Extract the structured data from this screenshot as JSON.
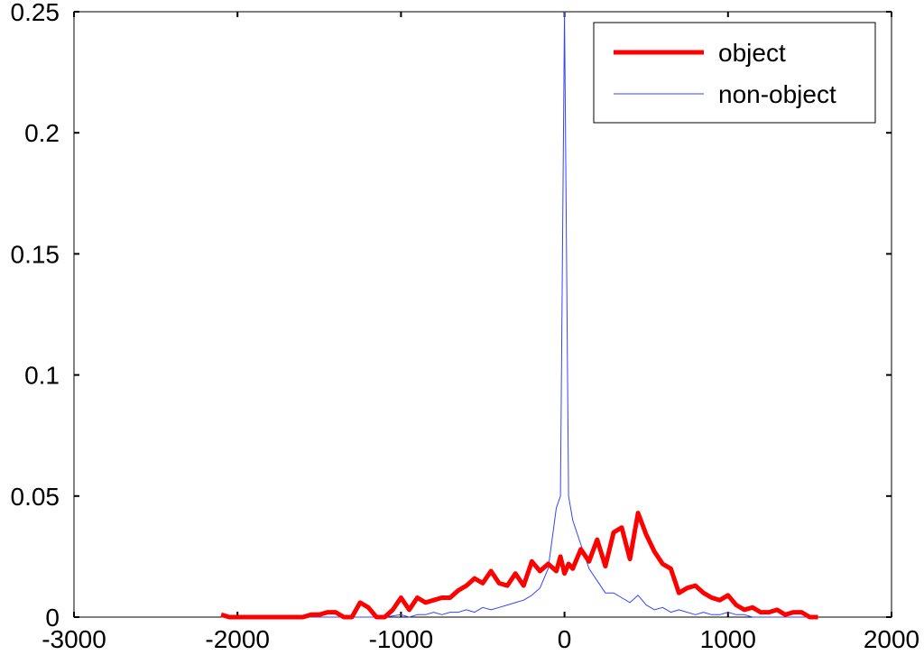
{
  "chart_data": {
    "type": "line",
    "title": "",
    "xlabel": "",
    "ylabel": "",
    "xlim": [
      -3000,
      2000
    ],
    "ylim": [
      0,
      0.25
    ],
    "xticks": [
      "-3000",
      "-2000",
      "-1000",
      "0",
      "1000",
      "2000"
    ],
    "yticks": [
      "0",
      "0.05",
      "0.1",
      "0.15",
      "0.2",
      "0.25"
    ],
    "grid": false,
    "legend_position": "top-right",
    "series": [
      {
        "name": "object",
        "color": "#ff0000",
        "x": [
          -2100,
          -2050,
          -2000,
          -1950,
          -1900,
          -1850,
          -1800,
          -1750,
          -1700,
          -1650,
          -1600,
          -1550,
          -1500,
          -1450,
          -1400,
          -1350,
          -1300,
          -1250,
          -1200,
          -1150,
          -1100,
          -1050,
          -1000,
          -950,
          -900,
          -850,
          -800,
          -750,
          -700,
          -650,
          -600,
          -550,
          -500,
          -450,
          -400,
          -350,
          -300,
          -250,
          -200,
          -150,
          -100,
          -50,
          -25,
          0,
          25,
          50,
          100,
          150,
          200,
          250,
          300,
          350,
          400,
          450,
          500,
          550,
          600,
          650,
          700,
          750,
          800,
          850,
          900,
          950,
          1000,
          1050,
          1100,
          1150,
          1200,
          1250,
          1300,
          1350,
          1400,
          1450,
          1500,
          1550
        ],
        "y": [
          0.001,
          0,
          0,
          0,
          0,
          0,
          0,
          0,
          0,
          0,
          0,
          0.001,
          0.001,
          0.002,
          0.002,
          0,
          0,
          0.006,
          0.004,
          0,
          0,
          0.003,
          0.008,
          0.003,
          0.008,
          0.006,
          0.007,
          0.008,
          0.008,
          0.011,
          0.013,
          0.016,
          0.014,
          0.019,
          0.014,
          0.013,
          0.018,
          0.013,
          0.023,
          0.019,
          0.022,
          0.019,
          0.025,
          0.018,
          0.022,
          0.02,
          0.028,
          0.023,
          0.032,
          0.021,
          0.035,
          0.037,
          0.024,
          0.043,
          0.034,
          0.027,
          0.022,
          0.02,
          0.01,
          0.012,
          0.013,
          0.01,
          0.008,
          0.007,
          0.009,
          0.005,
          0.003,
          0.004,
          0.002,
          0.002,
          0.003,
          0.001,
          0.002,
          0.002,
          0,
          0
        ]
      },
      {
        "name": "non-object",
        "color": "#3344ff",
        "x": [
          -2100,
          -2000,
          -1900,
          -1800,
          -1700,
          -1600,
          -1500,
          -1400,
          -1300,
          -1200,
          -1100,
          -1000,
          -950,
          -900,
          -850,
          -800,
          -750,
          -700,
          -650,
          -600,
          -550,
          -500,
          -450,
          -400,
          -350,
          -300,
          -250,
          -200,
          -150,
          -100,
          -50,
          -25,
          0,
          25,
          50,
          100,
          150,
          200,
          250,
          300,
          350,
          400,
          450,
          500,
          550,
          600,
          650,
          700,
          750,
          800,
          850,
          900,
          950,
          1000,
          1050,
          1100,
          1150,
          1200,
          1300,
          1400,
          1500,
          1550
        ],
        "y": [
          0,
          0,
          0,
          0,
          0,
          0,
          0,
          0,
          0,
          0,
          0,
          0.001,
          0,
          0.001,
          0.001,
          0.002,
          0.001,
          0.002,
          0.002,
          0.003,
          0.002,
          0.004,
          0.003,
          0.004,
          0.005,
          0.006,
          0.007,
          0.009,
          0.012,
          0.02,
          0.045,
          0.05,
          0.25,
          0.05,
          0.04,
          0.03,
          0.02,
          0.015,
          0.01,
          0.01,
          0.008,
          0.006,
          0.009,
          0.005,
          0.003,
          0.004,
          0.002,
          0.003,
          0.002,
          0.001,
          0.002,
          0.001,
          0.001,
          0.002,
          0.001,
          0.001,
          0,
          0,
          0,
          0,
          0,
          0
        ]
      }
    ]
  }
}
